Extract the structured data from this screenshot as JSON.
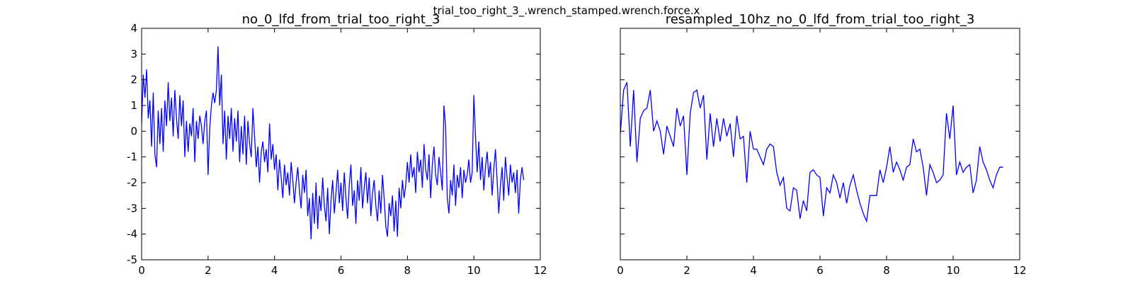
{
  "title": "trial_too_right_3_.wrench_stamped.wrench.force.x",
  "chart_data": [
    {
      "type": "line",
      "title": "no_0_lfd_from_trial_too_right_3",
      "xlim": [
        0,
        12
      ],
      "xticks": [
        0,
        2,
        4,
        6,
        8,
        10,
        12
      ],
      "ylim": [
        -5,
        4
      ],
      "yticks": [
        -5,
        -4,
        -3,
        -2,
        -1,
        0,
        1,
        2,
        3,
        4
      ],
      "ytick_labels": true,
      "color": "#0000ff",
      "x": [
        0,
        0.05,
        0.1,
        0.15,
        0.2,
        0.25,
        0.3,
        0.35,
        0.4,
        0.45,
        0.5,
        0.55,
        0.6,
        0.65,
        0.7,
        0.75,
        0.8,
        0.85,
        0.9,
        0.95,
        1,
        1.05,
        1.1,
        1.15,
        1.2,
        1.25,
        1.3,
        1.35,
        1.4,
        1.45,
        1.5,
        1.55,
        1.6,
        1.65,
        1.7,
        1.75,
        1.8,
        1.85,
        1.9,
        1.95,
        2,
        2.05,
        2.1,
        2.15,
        2.2,
        2.25,
        2.3,
        2.35,
        2.4,
        2.45,
        2.5,
        2.55,
        2.6,
        2.65,
        2.7,
        2.75,
        2.8,
        2.85,
        2.9,
        2.95,
        3,
        3.05,
        3.1,
        3.15,
        3.2,
        3.25,
        3.3,
        3.35,
        3.4,
        3.45,
        3.5,
        3.55,
        3.6,
        3.65,
        3.7,
        3.75,
        3.8,
        3.85,
        3.9,
        3.95,
        4,
        4.05,
        4.1,
        4.15,
        4.2,
        4.25,
        4.3,
        4.35,
        4.4,
        4.45,
        4.5,
        4.55,
        4.6,
        4.65,
        4.7,
        4.75,
        4.8,
        4.85,
        4.9,
        4.95,
        5,
        5.05,
        5.1,
        5.15,
        5.2,
        5.25,
        5.3,
        5.35,
        5.4,
        5.45,
        5.5,
        5.55,
        5.6,
        5.65,
        5.7,
        5.75,
        5.8,
        5.85,
        5.9,
        5.95,
        6,
        6.05,
        6.1,
        6.15,
        6.2,
        6.25,
        6.3,
        6.35,
        6.4,
        6.45,
        6.5,
        6.55,
        6.6,
        6.65,
        6.7,
        6.75,
        6.8,
        6.85,
        6.9,
        6.95,
        7,
        7.05,
        7.1,
        7.15,
        7.2,
        7.25,
        7.3,
        7.35,
        7.4,
        7.45,
        7.5,
        7.55,
        7.6,
        7.65,
        7.7,
        7.75,
        7.8,
        7.85,
        7.9,
        7.95,
        8,
        8.05,
        8.1,
        8.15,
        8.2,
        8.25,
        8.3,
        8.35,
        8.4,
        8.45,
        8.5,
        8.55,
        8.6,
        8.65,
        8.7,
        8.75,
        8.8,
        8.85,
        8.9,
        8.95,
        9,
        9.05,
        9.1,
        9.15,
        9.2,
        9.25,
        9.3,
        9.35,
        9.4,
        9.45,
        9.5,
        9.55,
        9.6,
        9.65,
        9.7,
        9.75,
        9.8,
        9.85,
        9.9,
        9.95,
        10,
        10.05,
        10.1,
        10.15,
        10.2,
        10.25,
        10.3,
        10.35,
        10.4,
        10.45,
        10.5,
        10.55,
        10.6,
        10.65,
        10.7,
        10.75,
        10.8,
        10.85,
        10.9,
        10.95,
        11,
        11.05,
        11.1,
        11.15,
        11.2,
        11.25,
        11.3,
        11.35,
        11.4,
        11.45,
        11.5
      ],
      "values": [
        0.3,
        2.2,
        1.3,
        2.4,
        0.5,
        1.2,
        -0.6,
        1.5,
        -0.9,
        -1.4,
        0.8,
        -0.5,
        0.9,
        -0.8,
        1.2,
        0.2,
        1.9,
        0.4,
        1.3,
        -0.2,
        1.6,
        0.5,
        -0.3,
        1.4,
        0.2,
        1.2,
        -1.0,
        0.4,
        -0.8,
        0.3,
        -0.2,
        0.9,
        -1.2,
        0.4,
        -0.3,
        0.6,
        0.2,
        -0.5,
        0.4,
        0.8,
        -1.7,
        0.1,
        1.0,
        1.5,
        1.1,
        1.6,
        3.3,
        1.0,
        2.2,
        -0.5,
        0.8,
        -1.1,
        0.6,
        -0.3,
        0.9,
        -0.8,
        0.5,
        -0.4,
        0.8,
        -1.2,
        0.2,
        -0.9,
        0.6,
        -1.3,
        0.4,
        -0.5,
        -1.0,
        0.9,
        -0.2,
        -1.4,
        -0.6,
        -2.0,
        -0.8,
        -0.4,
        -1.2,
        -0.7,
        -1.6,
        0.3,
        -1.1,
        -0.5,
        -1.5,
        -0.9,
        -2.3,
        -1.1,
        -1.8,
        -2.6,
        -1.3,
        -2.1,
        -1.6,
        -2.5,
        -1.2,
        -1.9,
        -2.8,
        -2.0,
        -1.4,
        -2.3,
        -3.0,
        -1.7,
        -2.4,
        -1.5,
        -3.3,
        -2.6,
        -4.2,
        -2.4,
        -3.6,
        -2.0,
        -3.8,
        -2.5,
        -3.1,
        -1.8,
        -2.9,
        -3.5,
        -2.2,
        -4.0,
        -2.7,
        -1.9,
        -3.2,
        -2.4,
        -1.5,
        -2.8,
        -2.0,
        -3.1,
        -1.6,
        -2.6,
        -3.4,
        -2.1,
        -1.3,
        -2.9,
        -2.3,
        -3.6,
        -1.9,
        -2.7,
        -1.4,
        -3.0,
        -2.2,
        -1.6,
        -2.8,
        -1.8,
        -3.3,
        -2.4,
        -1.9,
        -2.9,
        -3.5,
        -2.3,
        -3.2,
        -1.7,
        -2.6,
        -3.7,
        -4.1,
        -2.8,
        -3.3,
        -2.5,
        -3.9,
        -2.7,
        -4.1,
        -2.2,
        -3.0,
        -1.9,
        -2.6,
        -2.1,
        -1.2,
        -2.0,
        -0.9,
        -1.8,
        -1.4,
        -2.4,
        -0.8,
        -1.6,
        -1.1,
        -2.2,
        -0.5,
        -1.5,
        -1.9,
        -0.9,
        -2.6,
        -1.3,
        -0.6,
        -1.7,
        -2.1,
        -1.0,
        -1.6,
        -2.3,
        1.0,
        0.2,
        -2.6,
        -3.2,
        -1.9,
        -2.5,
        -1.3,
        -2.9,
        -1.7,
        -2.2,
        -1.4,
        -2.6,
        -1.5,
        -2.0,
        -1.7,
        -1.1,
        -2.0,
        -1.6,
        1.4,
        -0.2,
        -1.6,
        -0.4,
        -1.9,
        -1.0,
        -2.3,
        -1.4,
        -0.8,
        -1.8,
        -1.2,
        -2.5,
        -1.5,
        -0.7,
        -1.9,
        -3.2,
        -2.1,
        -1.4,
        -2.7,
        -1.0,
        -1.8,
        -2.5,
        -1.3,
        -2.0,
        -1.6,
        -2.4,
        -1.5,
        -3.2,
        -1.9,
        -1.4,
        -1.9
      ]
    },
    {
      "type": "line",
      "title": "resampled_10hz_no_0_lfd_from_trial_too_right_3",
      "xlim": [
        0,
        12
      ],
      "xticks": [
        0,
        2,
        4,
        6,
        8,
        10,
        12
      ],
      "ylim": [
        -5,
        4
      ],
      "yticks": [
        -5,
        -4,
        -3,
        -2,
        -1,
        0,
        1,
        2,
        3,
        4
      ],
      "ytick_labels": false,
      "color": "#0000ff",
      "x": [
        0,
        0.1,
        0.2,
        0.3,
        0.4,
        0.5,
        0.6,
        0.7,
        0.8,
        0.9,
        1,
        1.1,
        1.2,
        1.3,
        1.4,
        1.5,
        1.6,
        1.7,
        1.8,
        1.9,
        2,
        2.1,
        2.2,
        2.3,
        2.4,
        2.5,
        2.6,
        2.7,
        2.8,
        2.9,
        3,
        3.1,
        3.2,
        3.3,
        3.4,
        3.5,
        3.6,
        3.7,
        3.8,
        3.9,
        4,
        4.1,
        4.2,
        4.3,
        4.4,
        4.5,
        4.6,
        4.7,
        4.8,
        4.9,
        5,
        5.1,
        5.2,
        5.3,
        5.4,
        5.5,
        5.6,
        5.7,
        5.8,
        5.9,
        6,
        6.1,
        6.2,
        6.3,
        6.4,
        6.5,
        6.6,
        6.7,
        6.8,
        6.9,
        7,
        7.1,
        7.2,
        7.3,
        7.4,
        7.5,
        7.6,
        7.7,
        7.8,
        7.9,
        8,
        8.1,
        8.2,
        8.3,
        8.4,
        8.5,
        8.6,
        8.7,
        8.8,
        8.9,
        9,
        9.1,
        9.2,
        9.3,
        9.4,
        9.5,
        9.6,
        9.7,
        9.8,
        9.9,
        10,
        10.1,
        10.2,
        10.3,
        10.4,
        10.5,
        10.6,
        10.7,
        10.8,
        10.9,
        11,
        11.1,
        11.2,
        11.3,
        11.4,
        11.5
      ],
      "values": [
        -0.1,
        1.6,
        1.9,
        -0.6,
        1.6,
        -1.2,
        0.5,
        0.8,
        0.9,
        1.6,
        0.0,
        0.4,
        0.0,
        -0.9,
        0.2,
        -0.2,
        -0.6,
        0.9,
        0.2,
        0.6,
        -1.7,
        0.7,
        1.5,
        1.6,
        0.9,
        1.4,
        -1.1,
        0.7,
        -0.6,
        0.5,
        -0.4,
        0.5,
        -0.2,
        0.3,
        -1.0,
        0.6,
        -0.3,
        -0.2,
        -2.0,
        0.0,
        -0.7,
        -0.7,
        -1.0,
        -1.3,
        -0.7,
        -0.5,
        -0.6,
        -1.6,
        -2.1,
        -1.8,
        -3.0,
        -3.1,
        -2.2,
        -2.3,
        -3.4,
        -2.7,
        -3.1,
        -1.6,
        -1.5,
        -1.7,
        -1.8,
        -3.3,
        -2.2,
        -2.4,
        -1.7,
        -2.0,
        -2.6,
        -2.0,
        -2.8,
        -2.1,
        -1.7,
        -2.3,
        -2.8,
        -3.2,
        -3.5,
        -2.5,
        -2.5,
        -2.5,
        -1.5,
        -2.0,
        -1.4,
        -0.6,
        -1.6,
        -1.2,
        -1.5,
        -1.9,
        -1.4,
        -1.3,
        -0.3,
        -0.8,
        -0.7,
        -1.4,
        -2.5,
        -1.3,
        -1.6,
        -2.0,
        -1.9,
        -1.7,
        0.7,
        -0.3,
        1.0,
        -1.7,
        -1.2,
        -1.6,
        -1.4,
        -1.3,
        -2.4,
        -1.9,
        -0.6,
        -1.2,
        -1.5,
        -1.9,
        -2.2,
        -1.7,
        -1.4,
        -1.4
      ]
    }
  ]
}
